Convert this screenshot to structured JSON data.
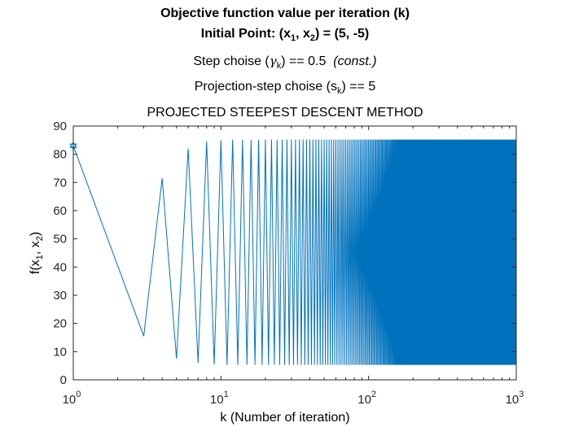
{
  "titles": {
    "line1": "Objective function value per iteration (k)",
    "line2_prefix": "Initial Point: (x",
    "line2_sub1": "1",
    "line2_mid": ", x",
    "line2_sub2": "2",
    "line2_suffix": ") = (5, -5)",
    "line3_prefix": "Step choise (",
    "line3_greek": "γ",
    "line3_sub": "k",
    "line3_suffix": ") == 0.5",
    "line3_italic": "(const.)",
    "line4_prefix": "Projection-step choise (s",
    "line4_sub": "k",
    "line4_suffix": ") == 5",
    "axes_title": "PROJECTED STEEPEST DESCENT METHOD"
  },
  "axes_labels": {
    "xlabel": "k (Number of iteration)",
    "ylabel_prefix": "f(x",
    "ylabel_sub1": "1",
    "ylabel_mid": ", x",
    "ylabel_sub2": "2",
    "ylabel_suffix": ")"
  },
  "chart_data": {
    "type": "line",
    "title": "PROJECTED STEEPEST DESCENT METHOD",
    "xlabel": "k (Number of iteration)",
    "ylabel": "f(x1, x2)",
    "xscale": "log",
    "xlim": [
      1,
      1000
    ],
    "ylim": [
      0,
      90
    ],
    "yticks": [
      0,
      10,
      20,
      30,
      40,
      50,
      60,
      70,
      80,
      90
    ],
    "xticks": [
      {
        "base": "10",
        "exp": "0"
      },
      {
        "base": "10",
        "exp": "1"
      },
      {
        "base": "10",
        "exp": "2"
      },
      {
        "base": "10",
        "exp": "3"
      }
    ],
    "grid": false,
    "series": [
      {
        "color": "#0072bd",
        "pattern": "oscillating",
        "points": [
          [
            1,
            83.0
          ],
          [
            3,
            15.5
          ],
          [
            4,
            71.5
          ],
          [
            5,
            7.5
          ],
          [
            6,
            82.0
          ],
          [
            7,
            6.0
          ],
          [
            8,
            84.5
          ],
          [
            9,
            5.5
          ],
          [
            10,
            85.0
          ],
          [
            11,
            5.3
          ],
          [
            12,
            85.2
          ]
        ],
        "steady_low": 5.3,
        "steady_high": 85.2,
        "last_x": 1000
      }
    ],
    "marker": {
      "x": 1,
      "y": 83.0,
      "shape": "hexagram"
    }
  }
}
